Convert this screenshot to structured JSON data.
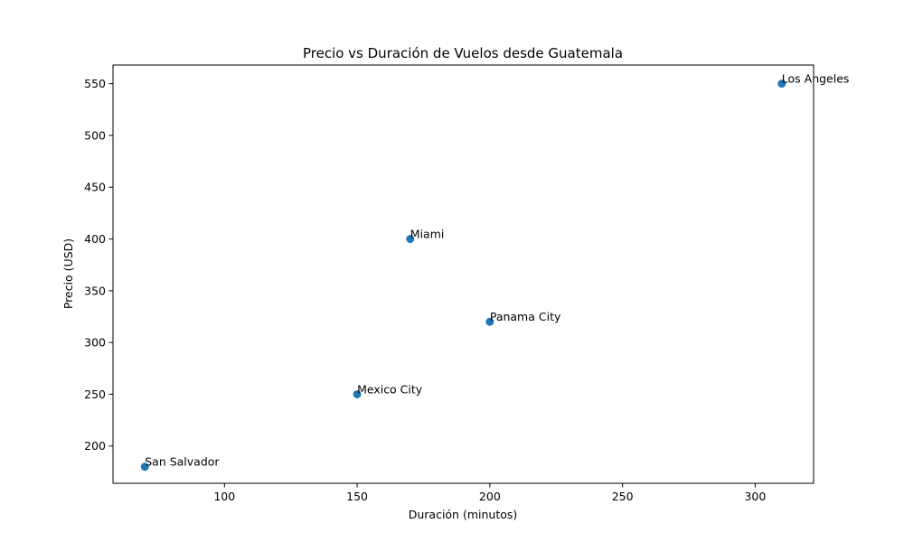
{
  "chart_data": {
    "type": "scatter",
    "title": "Precio vs Duración de Vuelos desde Guatemala",
    "xlabel": "Duración (minutos)",
    "ylabel": "Precio (USD)",
    "xlim": [
      58,
      322
    ],
    "ylim": [
      164,
      568
    ],
    "xticks": [
      100,
      150,
      200,
      250,
      300
    ],
    "yticks": [
      200,
      250,
      300,
      350,
      400,
      450,
      500,
      550
    ],
    "grid": false,
    "marker_color": "#1f77b4",
    "points": [
      {
        "label": "San Salvador",
        "x": 70,
        "y": 180
      },
      {
        "label": "Mexico City",
        "x": 150,
        "y": 250
      },
      {
        "label": "Miami",
        "x": 170,
        "y": 400
      },
      {
        "label": "Panama City",
        "x": 200,
        "y": 320
      },
      {
        "label": "Los Angeles",
        "x": 310,
        "y": 550
      }
    ]
  }
}
